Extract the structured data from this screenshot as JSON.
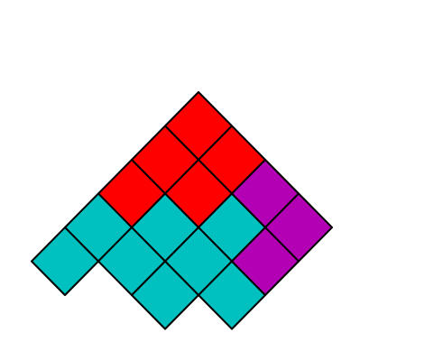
{
  "puzzle": {
    "pieces": [
      {
        "name": "red",
        "color": "#ff0000",
        "cells": [
          [
            0,
            0
          ],
          [
            0,
            1
          ],
          [
            1,
            0
          ],
          [
            1,
            1
          ],
          [
            2,
            0
          ]
        ]
      },
      {
        "name": "cyan",
        "color": "#00c0c0",
        "cells": [
          [
            1,
            2
          ],
          [
            2,
            1
          ],
          [
            2,
            2
          ],
          [
            2,
            3
          ],
          [
            3,
            0
          ],
          [
            3,
            1
          ],
          [
            3,
            2
          ],
          [
            4,
            0
          ]
        ]
      },
      {
        "name": "magenta",
        "color": "#b400b4",
        "cells": [
          [
            0,
            2
          ],
          [
            0,
            3
          ],
          [
            1,
            3
          ]
        ]
      }
    ],
    "outline_color": "#000000"
  }
}
